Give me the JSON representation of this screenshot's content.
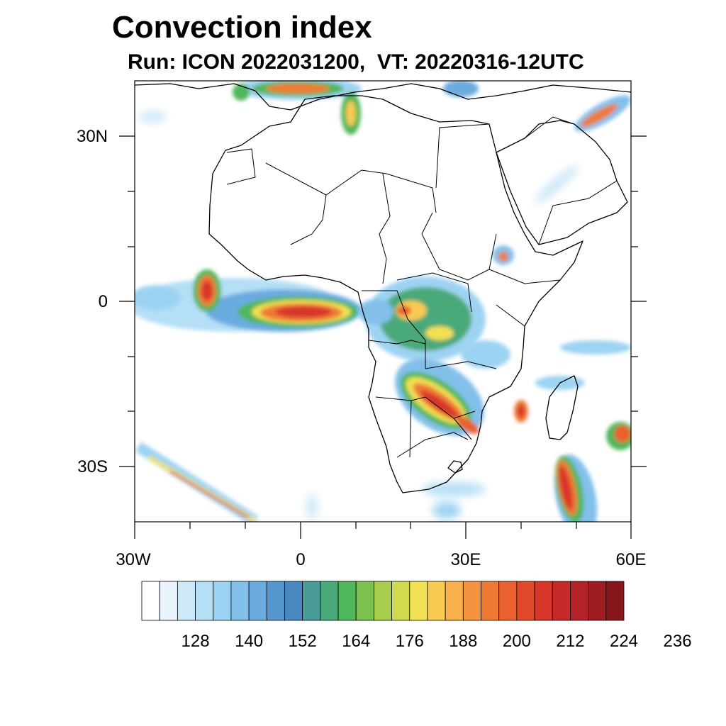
{
  "title": "Convection index",
  "subtitle": "Run: ICON 2022031200,  VT: 20220316-12UTC",
  "map": {
    "lon_range": [
      -30,
      60
    ],
    "lat_range": [
      -40,
      40
    ],
    "lon_ticks": [
      {
        "value": -30,
        "label": "30W"
      },
      {
        "value": 0,
        "label": "0"
      },
      {
        "value": 30,
        "label": "30E"
      },
      {
        "value": 60,
        "label": "60E"
      }
    ],
    "lat_ticks": [
      {
        "value": 30,
        "label": "30N"
      },
      {
        "value": 0,
        "label": "0"
      },
      {
        "value": -30,
        "label": "30S"
      }
    ]
  },
  "colorbar": {
    "colors": [
      "#ffffff",
      "#e8f4fb",
      "#cde8f7",
      "#b5dff5",
      "#9dd3f2",
      "#82c0ea",
      "#6aabe0",
      "#5697d0",
      "#4a87c0",
      "#4a9c98",
      "#4aa978",
      "#4fb65a",
      "#7cc04f",
      "#a8cc4c",
      "#d0da4f",
      "#f2e155",
      "#f8cb52",
      "#f7b04a",
      "#f49440",
      "#ee7a36",
      "#e9612f",
      "#e04a2b",
      "#d8352a",
      "#c62a28",
      "#b32226",
      "#9f1c22",
      "#86171c"
    ],
    "tick_labels": [
      "128",
      "140",
      "152",
      "164",
      "176",
      "188",
      "200",
      "212",
      "224",
      "236"
    ]
  }
}
